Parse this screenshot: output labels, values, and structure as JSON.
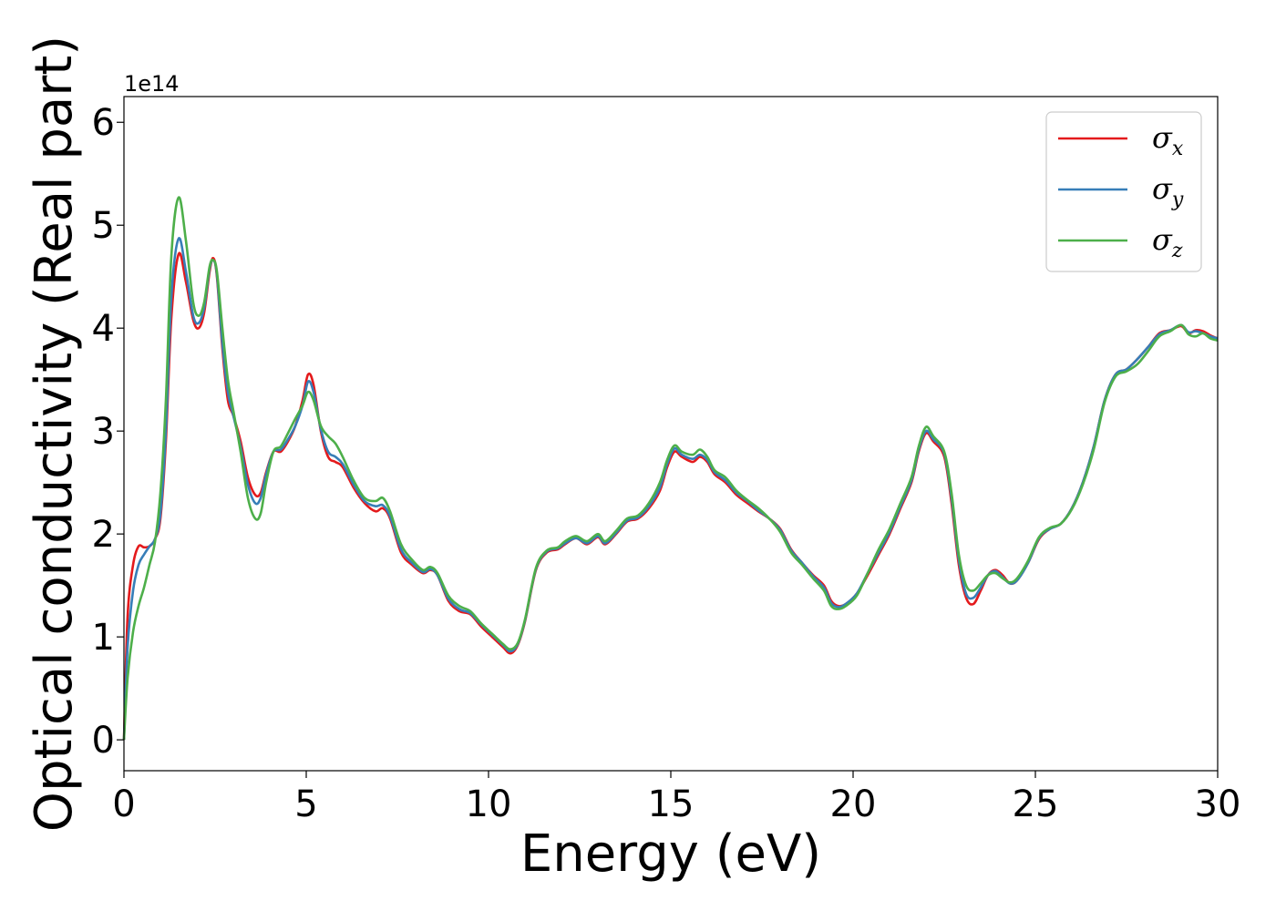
{
  "chart_data": {
    "type": "line",
    "title": "",
    "xlabel": "Energy (eV)",
    "ylabel": "Optical conductivity (Real part)",
    "y_offset_label": "1e14",
    "xlim": [
      0,
      30
    ],
    "ylim": [
      -0.3,
      6.25
    ],
    "x_ticks": [
      0,
      5,
      10,
      15,
      20,
      25,
      30
    ],
    "y_ticks": [
      0,
      1,
      2,
      3,
      4,
      5,
      6
    ],
    "grid": false,
    "legend_position": "top-right",
    "series": [
      {
        "name": "σx",
        "symbol": "σ",
        "subscript": "x",
        "color": "#e41a1c",
        "x": [
          0,
          0.1,
          0.25,
          0.4,
          0.55,
          0.7,
          0.85,
          1.0,
          1.15,
          1.3,
          1.5,
          1.7,
          1.9,
          2.05,
          2.2,
          2.35,
          2.45,
          2.55,
          2.7,
          2.85,
          3.0,
          3.2,
          3.4,
          3.6,
          3.75,
          3.9,
          4.1,
          4.3,
          4.5,
          4.7,
          4.9,
          5.05,
          5.2,
          5.4,
          5.6,
          5.8,
          6.0,
          6.3,
          6.6,
          6.9,
          7.1,
          7.3,
          7.6,
          7.9,
          8.2,
          8.4,
          8.6,
          8.9,
          9.2,
          9.5,
          9.8,
          10.1,
          10.4,
          10.6,
          10.8,
          11.0,
          11.3,
          11.6,
          11.9,
          12.1,
          12.4,
          12.7,
          13.0,
          13.2,
          13.5,
          13.8,
          14.1,
          14.4,
          14.7,
          14.9,
          15.1,
          15.3,
          15.6,
          15.8,
          16.0,
          16.2,
          16.5,
          16.8,
          17.1,
          17.4,
          17.7,
          18.0,
          18.3,
          18.6,
          18.9,
          19.2,
          19.4,
          19.6,
          19.8,
          20.1,
          20.4,
          20.7,
          21.0,
          21.3,
          21.6,
          21.8,
          22.0,
          22.2,
          22.5,
          22.7,
          22.9,
          23.1,
          23.3,
          23.5,
          23.7,
          23.9,
          24.1,
          24.3,
          24.5,
          24.8,
          25.1,
          25.4,
          25.7,
          26.0,
          26.3,
          26.6,
          26.9,
          27.2,
          27.5,
          27.8,
          28.1,
          28.4,
          28.7,
          29.0,
          29.2,
          29.4,
          29.6,
          29.8,
          30.0
        ],
        "y": [
          0,
          1.2,
          1.7,
          1.88,
          1.87,
          1.88,
          1.95,
          2.15,
          2.9,
          4.1,
          4.72,
          4.45,
          4.08,
          4.0,
          4.15,
          4.55,
          4.68,
          4.5,
          3.8,
          3.3,
          3.15,
          2.9,
          2.55,
          2.38,
          2.4,
          2.6,
          2.8,
          2.8,
          2.9,
          3.05,
          3.3,
          3.55,
          3.45,
          3.0,
          2.75,
          2.7,
          2.65,
          2.45,
          2.3,
          2.22,
          2.25,
          2.15,
          1.82,
          1.7,
          1.62,
          1.65,
          1.6,
          1.35,
          1.25,
          1.22,
          1.1,
          1.0,
          0.9,
          0.84,
          0.92,
          1.15,
          1.65,
          1.82,
          1.85,
          1.9,
          1.96,
          1.9,
          1.97,
          1.9,
          2.0,
          2.12,
          2.15,
          2.25,
          2.42,
          2.65,
          2.8,
          2.75,
          2.7,
          2.75,
          2.7,
          2.58,
          2.5,
          2.38,
          2.3,
          2.22,
          2.15,
          2.05,
          1.85,
          1.72,
          1.6,
          1.5,
          1.35,
          1.3,
          1.32,
          1.42,
          1.6,
          1.8,
          2.0,
          2.25,
          2.5,
          2.8,
          2.98,
          2.9,
          2.75,
          2.3,
          1.7,
          1.38,
          1.32,
          1.45,
          1.6,
          1.65,
          1.6,
          1.52,
          1.55,
          1.72,
          1.95,
          2.05,
          2.1,
          2.25,
          2.5,
          2.85,
          3.3,
          3.55,
          3.6,
          3.7,
          3.82,
          3.95,
          3.98,
          4.02,
          3.95,
          3.98,
          3.97,
          3.93,
          3.9
        ]
      },
      {
        "name": "σy",
        "symbol": "σ",
        "subscript": "y",
        "color": "#377eb8",
        "x": [
          0,
          0.1,
          0.25,
          0.4,
          0.55,
          0.7,
          0.85,
          1.0,
          1.15,
          1.3,
          1.5,
          1.7,
          1.9,
          2.05,
          2.2,
          2.35,
          2.45,
          2.55,
          2.7,
          2.85,
          3.0,
          3.2,
          3.4,
          3.6,
          3.75,
          3.9,
          4.1,
          4.3,
          4.5,
          4.7,
          4.9,
          5.05,
          5.2,
          5.4,
          5.6,
          5.8,
          6.0,
          6.3,
          6.6,
          6.9,
          7.1,
          7.3,
          7.6,
          7.9,
          8.2,
          8.4,
          8.6,
          8.9,
          9.2,
          9.5,
          9.8,
          10.1,
          10.4,
          10.6,
          10.8,
          11.0,
          11.3,
          11.6,
          11.9,
          12.1,
          12.4,
          12.7,
          13.0,
          13.2,
          13.5,
          13.8,
          14.1,
          14.4,
          14.7,
          14.9,
          15.1,
          15.3,
          15.6,
          15.8,
          16.0,
          16.2,
          16.5,
          16.8,
          17.1,
          17.4,
          17.7,
          18.0,
          18.3,
          18.6,
          18.9,
          19.2,
          19.4,
          19.6,
          19.8,
          20.1,
          20.4,
          20.7,
          21.0,
          21.3,
          21.6,
          21.8,
          22.0,
          22.2,
          22.5,
          22.7,
          22.9,
          23.1,
          23.3,
          23.5,
          23.7,
          23.9,
          24.1,
          24.3,
          24.5,
          24.8,
          25.1,
          25.4,
          25.7,
          26.0,
          26.3,
          26.6,
          26.9,
          27.2,
          27.5,
          27.8,
          28.1,
          28.4,
          28.7,
          29.0,
          29.2,
          29.4,
          29.6,
          29.8,
          30.0
        ],
        "y": [
          0,
          0.9,
          1.45,
          1.7,
          1.8,
          1.88,
          1.95,
          2.2,
          3.0,
          4.3,
          4.87,
          4.55,
          4.12,
          4.05,
          4.2,
          4.58,
          4.66,
          4.52,
          3.85,
          3.38,
          3.15,
          2.85,
          2.48,
          2.3,
          2.35,
          2.58,
          2.8,
          2.82,
          2.92,
          3.05,
          3.25,
          3.48,
          3.38,
          3.02,
          2.8,
          2.75,
          2.68,
          2.48,
          2.32,
          2.27,
          2.28,
          2.17,
          1.85,
          1.72,
          1.63,
          1.66,
          1.6,
          1.37,
          1.27,
          1.23,
          1.12,
          1.02,
          0.92,
          0.86,
          0.93,
          1.16,
          1.66,
          1.83,
          1.86,
          1.91,
          1.96,
          1.91,
          1.98,
          1.91,
          2.01,
          2.13,
          2.16,
          2.27,
          2.45,
          2.68,
          2.83,
          2.77,
          2.73,
          2.77,
          2.72,
          2.6,
          2.52,
          2.4,
          2.32,
          2.23,
          2.15,
          2.04,
          1.84,
          1.72,
          1.59,
          1.48,
          1.33,
          1.29,
          1.32,
          1.42,
          1.62,
          1.82,
          2.02,
          2.27,
          2.52,
          2.82,
          3.0,
          2.92,
          2.78,
          2.35,
          1.75,
          1.42,
          1.38,
          1.48,
          1.6,
          1.64,
          1.58,
          1.52,
          1.55,
          1.72,
          1.96,
          2.05,
          2.1,
          2.25,
          2.5,
          2.85,
          3.3,
          3.55,
          3.6,
          3.7,
          3.82,
          3.94,
          3.98,
          4.03,
          3.96,
          3.97,
          3.95,
          3.92,
          3.9
        ]
      },
      {
        "name": "σz",
        "symbol": "σ",
        "subscript": "z",
        "color": "#4daf4a",
        "x": [
          0,
          0.1,
          0.25,
          0.4,
          0.55,
          0.7,
          0.85,
          1.0,
          1.15,
          1.3,
          1.5,
          1.7,
          1.9,
          2.05,
          2.2,
          2.35,
          2.45,
          2.55,
          2.7,
          2.85,
          3.0,
          3.2,
          3.4,
          3.6,
          3.75,
          3.9,
          4.1,
          4.3,
          4.5,
          4.7,
          4.9,
          5.05,
          5.2,
          5.4,
          5.6,
          5.8,
          6.0,
          6.3,
          6.6,
          6.9,
          7.1,
          7.3,
          7.6,
          7.9,
          8.2,
          8.4,
          8.6,
          8.9,
          9.2,
          9.5,
          9.8,
          10.1,
          10.4,
          10.6,
          10.8,
          11.0,
          11.3,
          11.6,
          11.9,
          12.1,
          12.4,
          12.7,
          13.0,
          13.2,
          13.5,
          13.8,
          14.1,
          14.4,
          14.7,
          14.9,
          15.1,
          15.3,
          15.6,
          15.8,
          16.0,
          16.2,
          16.5,
          16.8,
          17.1,
          17.4,
          17.7,
          18.0,
          18.3,
          18.6,
          18.9,
          19.2,
          19.4,
          19.6,
          19.8,
          20.1,
          20.4,
          20.7,
          21.0,
          21.3,
          21.6,
          21.8,
          22.0,
          22.2,
          22.5,
          22.7,
          22.9,
          23.1,
          23.3,
          23.5,
          23.7,
          23.9,
          24.1,
          24.3,
          24.5,
          24.8,
          25.1,
          25.4,
          25.7,
          26.0,
          26.3,
          26.6,
          26.9,
          27.2,
          27.5,
          27.8,
          28.1,
          28.4,
          28.7,
          29.0,
          29.2,
          29.4,
          29.6,
          29.8,
          30.0
        ],
        "y": [
          0,
          0.6,
          1.05,
          1.3,
          1.48,
          1.7,
          1.92,
          2.4,
          3.3,
          4.7,
          5.27,
          4.85,
          4.25,
          4.12,
          4.25,
          4.6,
          4.66,
          4.55,
          4.0,
          3.5,
          3.2,
          2.8,
          2.35,
          2.15,
          2.2,
          2.5,
          2.8,
          2.85,
          2.98,
          3.12,
          3.25,
          3.38,
          3.3,
          3.05,
          2.95,
          2.88,
          2.75,
          2.52,
          2.35,
          2.32,
          2.35,
          2.22,
          1.9,
          1.75,
          1.65,
          1.68,
          1.62,
          1.4,
          1.3,
          1.25,
          1.13,
          1.03,
          0.93,
          0.88,
          0.94,
          1.17,
          1.67,
          1.84,
          1.87,
          1.93,
          1.98,
          1.93,
          2.0,
          1.93,
          2.03,
          2.15,
          2.18,
          2.3,
          2.5,
          2.72,
          2.86,
          2.8,
          2.77,
          2.82,
          2.75,
          2.62,
          2.55,
          2.42,
          2.33,
          2.25,
          2.15,
          2.02,
          1.82,
          1.7,
          1.57,
          1.45,
          1.3,
          1.27,
          1.3,
          1.4,
          1.62,
          1.85,
          2.05,
          2.3,
          2.55,
          2.85,
          3.04,
          2.95,
          2.8,
          2.4,
          1.8,
          1.5,
          1.45,
          1.52,
          1.6,
          1.62,
          1.57,
          1.53,
          1.57,
          1.74,
          1.97,
          2.06,
          2.1,
          2.24,
          2.48,
          2.82,
          3.28,
          3.53,
          3.58,
          3.65,
          3.78,
          3.92,
          3.97,
          4.03,
          3.94,
          3.92,
          3.95,
          3.9,
          3.88
        ]
      }
    ]
  }
}
